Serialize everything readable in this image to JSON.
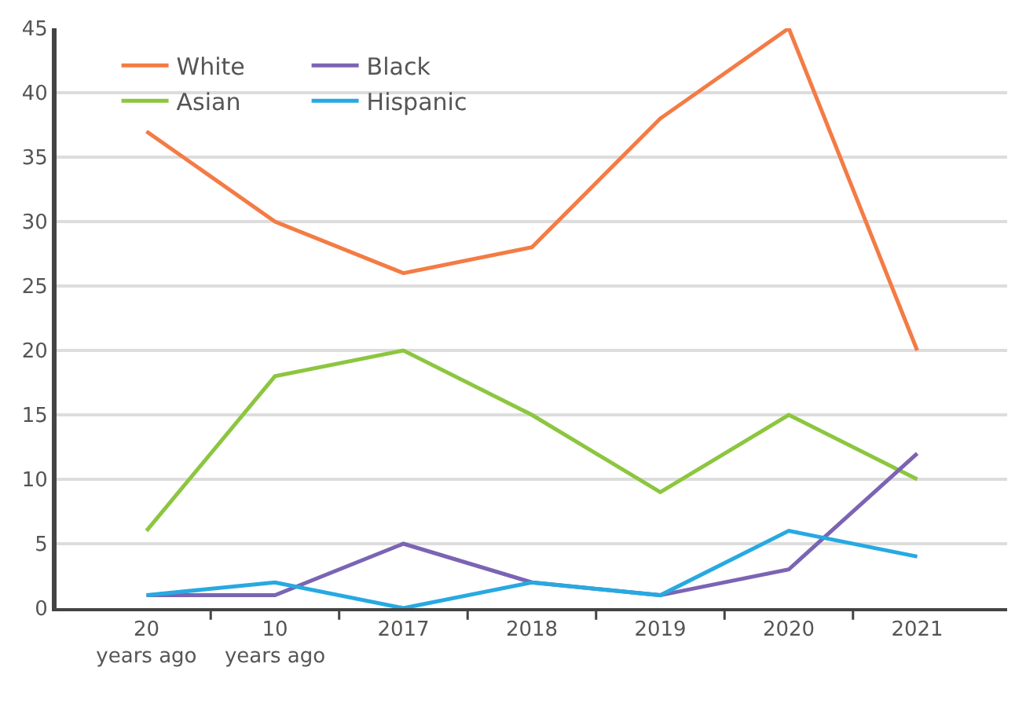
{
  "chart_data": {
    "type": "line",
    "categories": [
      "20 years ago",
      "10 years ago",
      "2017",
      "2018",
      "2019",
      "2020",
      "2021"
    ],
    "series": [
      {
        "name": "White",
        "color": "#f47b45",
        "values": [
          37,
          30,
          26,
          28,
          38,
          45,
          20
        ]
      },
      {
        "name": "Asian",
        "color": "#8cc63f",
        "values": [
          6,
          18,
          20,
          15,
          9,
          15,
          10
        ]
      },
      {
        "name": "Black",
        "color": "#7b64b3",
        "values": [
          1,
          1,
          5,
          2,
          1,
          3,
          12
        ]
      },
      {
        "name": "Hispanic",
        "color": "#27a9e1",
        "values": [
          1,
          2,
          0,
          2,
          1,
          6,
          4
        ]
      }
    ],
    "ylim": [
      0,
      45
    ],
    "yticks": [
      0,
      5,
      10,
      15,
      20,
      25,
      30,
      35,
      40,
      45
    ],
    "grid": "y",
    "legend": "top left",
    "marker": "none",
    "line_style": "solid"
  }
}
